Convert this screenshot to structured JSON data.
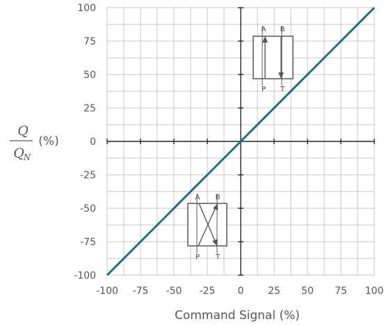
{
  "chart_data": {
    "type": "line",
    "xlabel": "Command Signal (%)",
    "ylabel": {
      "numerator": "Q",
      "denominator": "Q",
      "subscript": "N",
      "unit": "(%)"
    },
    "xlim": [
      -100,
      100
    ],
    "ylim": [
      -100,
      100
    ],
    "x_ticks": [
      -100,
      -75,
      -50,
      -25,
      0,
      25,
      50,
      75,
      100
    ],
    "y_ticks": [
      100,
      75,
      50,
      25,
      0,
      -25,
      -50,
      -75,
      -100
    ],
    "grid": true,
    "series": [
      {
        "x": [
          -100,
          -75,
          -50,
          -25,
          0,
          25,
          50,
          75,
          100
        ],
        "y": [
          -100,
          -75,
          -50,
          -25,
          0,
          25,
          50,
          75,
          100
        ],
        "color": "#1f6a84"
      }
    ],
    "annotations": {
      "valve_upper": {
        "top_left": "A",
        "top_right": "B",
        "bottom_left": "P",
        "bottom_right": "T"
      },
      "valve_lower": {
        "top_left": "A",
        "top_right": "B",
        "bottom_left": "P",
        "bottom_right": "T"
      }
    }
  }
}
